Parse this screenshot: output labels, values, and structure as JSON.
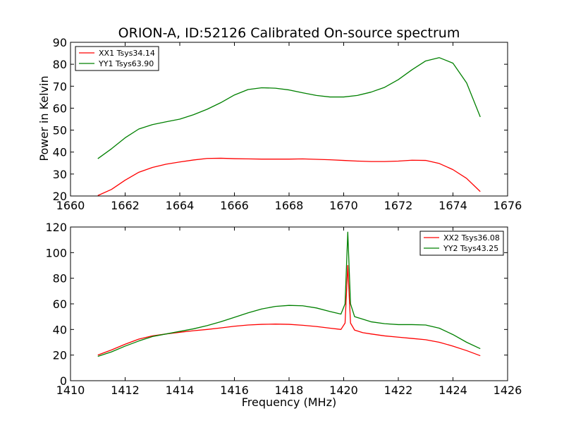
{
  "figure": {
    "title": "ORION-A, ID:52126 Calibrated On-source spectrum",
    "ylabel": "Power in Kelvin",
    "xlabel": "Frequency (MHz)"
  },
  "chart_data": [
    {
      "type": "line",
      "title": "ORION-A, ID:52126 Calibrated On-source spectrum",
      "xlabel": "",
      "ylabel": "Power in Kelvin",
      "xlim": [
        1660,
        1676
      ],
      "ylim": [
        20,
        90
      ],
      "xticks": [
        1660,
        1662,
        1664,
        1666,
        1668,
        1670,
        1672,
        1674,
        1676
      ],
      "yticks": [
        20,
        30,
        40,
        50,
        60,
        70,
        80,
        90
      ],
      "legend_position": "top-left",
      "series": [
        {
          "name": "XX1 Tsys34.14",
          "color": "#ff0000",
          "x": [
            1661.0,
            1661.5,
            1662.0,
            1662.5,
            1663.0,
            1663.5,
            1664.0,
            1664.5,
            1665.0,
            1665.5,
            1666.0,
            1666.5,
            1667.0,
            1667.5,
            1668.0,
            1668.5,
            1669.0,
            1669.5,
            1670.0,
            1670.5,
            1671.0,
            1671.5,
            1672.0,
            1672.5,
            1673.0,
            1673.5,
            1674.0,
            1674.5,
            1675.0
          ],
          "y": [
            20.2,
            23.0,
            27.2,
            30.8,
            33.0,
            34.5,
            35.5,
            36.4,
            37.1,
            37.2,
            37.0,
            36.9,
            36.8,
            36.8,
            36.8,
            36.9,
            36.7,
            36.5,
            36.2,
            35.9,
            35.7,
            35.7,
            35.9,
            36.3,
            36.2,
            34.8,
            32.0,
            28.0,
            22.0
          ]
        },
        {
          "name": "YY1 Tsys63.90",
          "color": "#008000",
          "x": [
            1661.0,
            1661.5,
            1662.0,
            1662.5,
            1663.0,
            1663.5,
            1664.0,
            1664.5,
            1665.0,
            1665.5,
            1666.0,
            1666.5,
            1667.0,
            1667.5,
            1668.0,
            1668.5,
            1669.0,
            1669.5,
            1670.0,
            1670.5,
            1671.0,
            1671.5,
            1672.0,
            1672.5,
            1673.0,
            1673.5,
            1674.0,
            1674.5,
            1675.0
          ],
          "y": [
            37.0,
            41.5,
            46.5,
            50.5,
            52.5,
            53.8,
            55.0,
            57.0,
            59.5,
            62.5,
            66.0,
            68.5,
            69.3,
            69.1,
            68.3,
            67.0,
            65.8,
            65.1,
            65.1,
            65.8,
            67.3,
            69.5,
            73.0,
            77.5,
            81.5,
            83.0,
            80.5,
            71.5,
            56.0
          ]
        }
      ]
    },
    {
      "type": "line",
      "title": "",
      "xlabel": "Frequency (MHz)",
      "ylabel": "",
      "xlim": [
        1410,
        1426
      ],
      "ylim": [
        0,
        120
      ],
      "xticks": [
        1410,
        1412,
        1414,
        1416,
        1418,
        1420,
        1422,
        1424,
        1426
      ],
      "yticks": [
        0,
        20,
        40,
        60,
        80,
        100,
        120
      ],
      "legend_position": "top-right",
      "series": [
        {
          "name": "XX2 Tsys36.08",
          "color": "#ff0000",
          "x": [
            1411.0,
            1411.5,
            1412.0,
            1412.5,
            1413.0,
            1413.5,
            1414.0,
            1414.5,
            1415.0,
            1415.5,
            1416.0,
            1416.5,
            1417.0,
            1417.5,
            1418.0,
            1418.5,
            1419.0,
            1419.5,
            1419.9,
            1420.05,
            1420.15,
            1420.25,
            1420.4,
            1420.7,
            1421.0,
            1421.5,
            1422.0,
            1422.5,
            1423.0,
            1423.5,
            1424.0,
            1424.5,
            1425.0
          ],
          "y": [
            20.0,
            24.0,
            28.5,
            32.5,
            35.0,
            36.5,
            37.8,
            39.0,
            40.0,
            41.2,
            42.5,
            43.5,
            44.0,
            44.2,
            44.0,
            43.3,
            42.3,
            41.0,
            40.0,
            45.0,
            90.0,
            45.0,
            39.5,
            37.5,
            36.5,
            35.0,
            34.0,
            33.0,
            32.0,
            30.0,
            27.0,
            23.5,
            19.5
          ]
        },
        {
          "name": "YY2 Tsys43.25",
          "color": "#008000",
          "x": [
            1411.0,
            1411.5,
            1412.0,
            1412.5,
            1413.0,
            1413.5,
            1414.0,
            1414.5,
            1415.0,
            1415.5,
            1416.0,
            1416.5,
            1417.0,
            1417.5,
            1418.0,
            1418.5,
            1419.0,
            1419.5,
            1419.9,
            1420.05,
            1420.15,
            1420.25,
            1420.4,
            1420.7,
            1421.0,
            1421.5,
            1422.0,
            1422.5,
            1423.0,
            1423.5,
            1424.0,
            1424.5,
            1425.0
          ],
          "y": [
            19.0,
            22.5,
            27.0,
            31.0,
            34.5,
            36.5,
            38.5,
            40.5,
            43.0,
            46.0,
            49.5,
            53.0,
            56.0,
            58.0,
            58.8,
            58.5,
            56.8,
            54.0,
            52.0,
            60.0,
            116.0,
            60.0,
            50.0,
            48.0,
            46.0,
            44.5,
            43.8,
            43.8,
            43.5,
            41.0,
            36.0,
            30.0,
            25.0
          ]
        }
      ]
    }
  ]
}
